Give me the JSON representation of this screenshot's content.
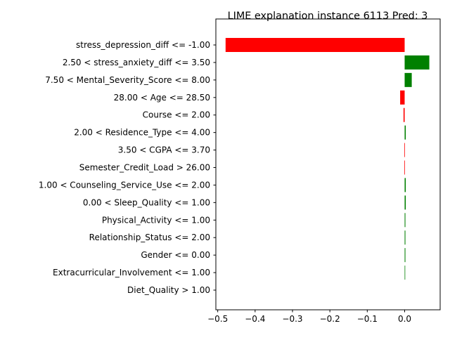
{
  "chart_data": {
    "type": "bar",
    "orientation": "horizontal",
    "title": "LIME explanation instance 6113 Pred: 3",
    "xlabel": "",
    "ylabel": "",
    "xlim": [
      -0.505,
      0.095
    ],
    "x_ticks": [
      {
        "value": -0.5,
        "label": "−0.5"
      },
      {
        "value": -0.4,
        "label": "−0.4"
      },
      {
        "value": -0.3,
        "label": "−0.3"
      },
      {
        "value": -0.2,
        "label": "−0.2"
      },
      {
        "value": -0.1,
        "label": "−0.1"
      },
      {
        "value": 0.0,
        "label": "0.0"
      }
    ],
    "grid": false,
    "legend": "none",
    "positive_color": "#008000",
    "negative_color": "#ff0000",
    "categories": [
      "stress_depression_diff <= -1.00",
      "2.50 < stress_anxiety_diff <= 3.50",
      "7.50 < Mental_Severity_Score <= 8.00",
      "28.00 < Age <= 28.50",
      "Course <= 2.00",
      "2.00 < Residence_Type <= 4.00",
      "3.50 < CGPA <= 3.70",
      "Semester_Credit_Load > 26.00",
      "1.00 < Counseling_Service_Use <= 2.00",
      "0.00 < Sleep_Quality <= 1.00",
      "Physical_Activity <= 1.00",
      "Relationship_Status <= 2.00",
      "Gender <= 0.00",
      "Extracurricular_Involvement <= 1.00",
      "Diet_Quality > 1.00"
    ],
    "values": [
      -0.479,
      0.066,
      0.019,
      -0.012,
      -0.003,
      0.003,
      -0.001,
      -0.001,
      0.003,
      0.003,
      0.002,
      0.002,
      0.002,
      0.001,
      0.0
    ]
  }
}
